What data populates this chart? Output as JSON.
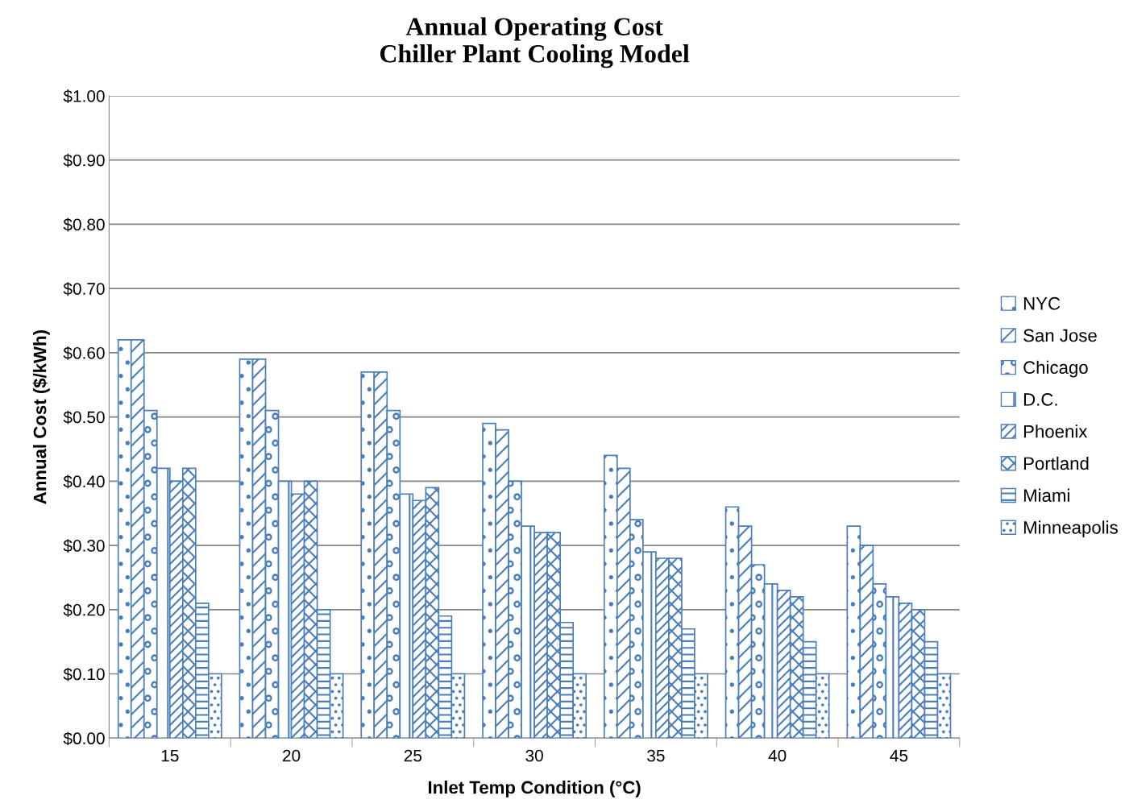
{
  "chart_data": {
    "type": "bar",
    "title": "Annual Operating Cost\nChiller Plant Cooling Model",
    "xlabel": "Inlet Temp Condition (°C)",
    "ylabel": "Annual Cost ($/kWh)",
    "categories": [
      "15",
      "20",
      "25",
      "30",
      "35",
      "40",
      "45"
    ],
    "series": [
      {
        "name": "NYC",
        "color": "#4a7ebb",
        "values": [
          0.62,
          0.59,
          0.57,
          0.49,
          0.44,
          0.36,
          0.33
        ]
      },
      {
        "name": "San Jose",
        "color": "#4a7ebb",
        "values": [
          0.62,
          0.59,
          0.57,
          0.48,
          0.42,
          0.33,
          0.3
        ]
      },
      {
        "name": "Chicago",
        "color": "#4a7ebb",
        "values": [
          0.51,
          0.51,
          0.51,
          0.4,
          0.34,
          0.27,
          0.24
        ]
      },
      {
        "name": "D.C.",
        "color": "#4a7ebb",
        "values": [
          0.42,
          0.4,
          0.38,
          0.33,
          0.29,
          0.24,
          0.22
        ]
      },
      {
        "name": "Phoenix",
        "color": "#4a7ebb",
        "values": [
          0.4,
          0.38,
          0.37,
          0.32,
          0.28,
          0.23,
          0.21
        ]
      },
      {
        "name": "Portland",
        "color": "#4a7ebb",
        "values": [
          0.42,
          0.4,
          0.39,
          0.32,
          0.28,
          0.22,
          0.2
        ]
      },
      {
        "name": "Miami",
        "color": "#4a7ebb",
        "values": [
          0.21,
          0.2,
          0.19,
          0.18,
          0.17,
          0.15,
          0.15
        ]
      },
      {
        "name": "Minneapolis",
        "color": "#4a7ebb",
        "values": [
          0.1,
          0.1,
          0.1,
          0.1,
          0.1,
          0.1,
          0.1
        ]
      }
    ],
    "ylim": [
      0,
      1.0
    ],
    "yticks": [
      {
        "value": 0,
        "label": "$0.00"
      },
      {
        "value": 0.1,
        "label": "$0.10"
      },
      {
        "value": 0.2,
        "label": "$0.20"
      },
      {
        "value": 0.3,
        "label": "$0.30"
      },
      {
        "value": 0.4,
        "label": "$0.40"
      },
      {
        "value": 0.5,
        "label": "$0.50"
      },
      {
        "value": 0.6,
        "label": "$0.60"
      },
      {
        "value": 0.7,
        "label": "$0.70"
      },
      {
        "value": 0.8,
        "label": "$0.80"
      },
      {
        "value": 0.9,
        "label": "$0.90"
      },
      {
        "value": 1.0,
        "label": "$1.00"
      }
    ],
    "grid": "y",
    "legend": "right"
  }
}
